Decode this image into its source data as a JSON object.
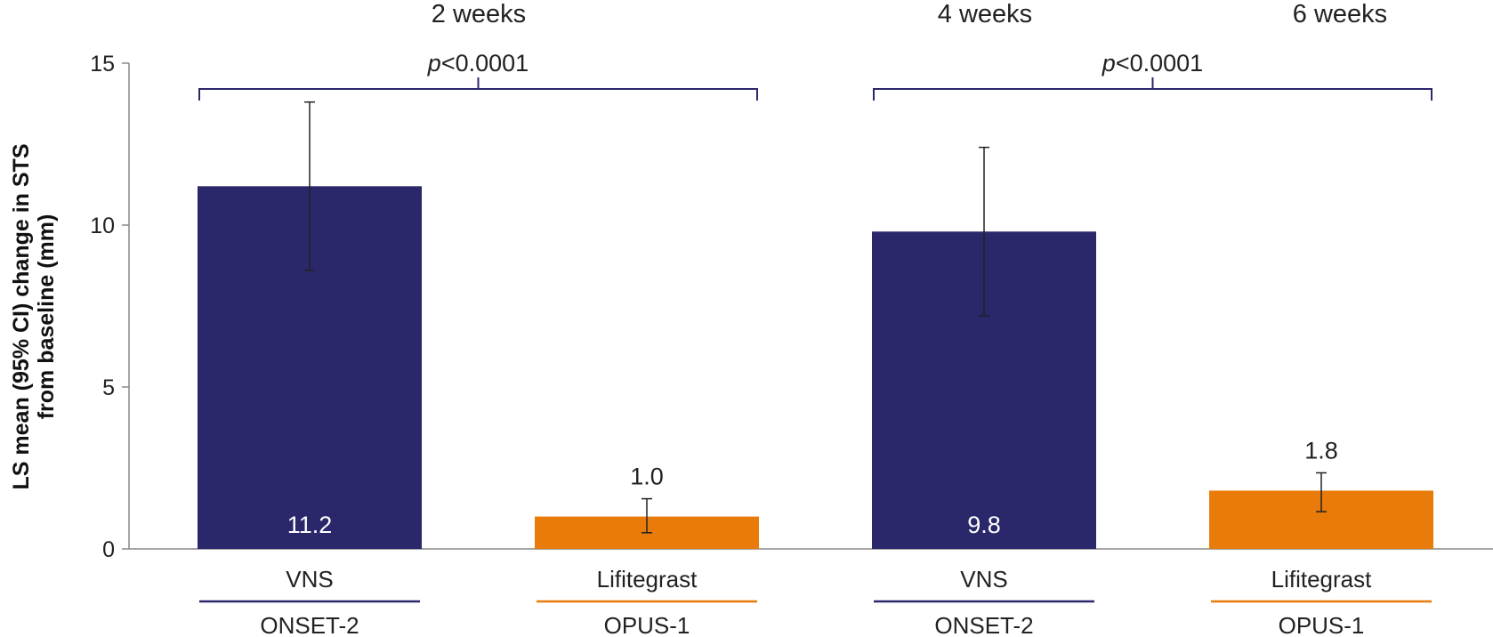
{
  "chart_data": {
    "type": "bar",
    "ylabel_lines": [
      "LS mean (95% CI) change in STS",
      "from baseline (mm)"
    ],
    "ylim": [
      0,
      15
    ],
    "yticks": [
      "0",
      "5",
      "10",
      "15"
    ],
    "time_labels": [
      "2 weeks",
      "4 weeks",
      "6 weeks"
    ],
    "comparisons": [
      {
        "p_prefix": "p",
        "p_rest": "<0.0001"
      },
      {
        "p_prefix": "p",
        "p_rest": "<0.0001"
      }
    ],
    "bars": [
      {
        "treatment": "VNS",
        "study": "ONSET-2",
        "value": 11.2,
        "label": "11.2",
        "ci": [
          8.6,
          13.8
        ],
        "color": "#2b276b"
      },
      {
        "treatment": "Lifitegrast",
        "study": "OPUS-1",
        "value": 1.0,
        "label": "1.0",
        "ci": [
          0.5,
          1.55
        ],
        "color": "#e97b0a"
      },
      {
        "treatment": "VNS",
        "study": "ONSET-2",
        "value": 9.8,
        "label": "9.8",
        "ci": [
          7.2,
          12.4
        ],
        "color": "#2b276b"
      },
      {
        "treatment": "Lifitegrast",
        "study": "OPUS-1",
        "value": 1.8,
        "label": "1.8",
        "ci": [
          1.15,
          2.35
        ],
        "color": "#e97b0a"
      }
    ],
    "axis_color": "#888888",
    "bracket_color": "#2b276b"
  }
}
